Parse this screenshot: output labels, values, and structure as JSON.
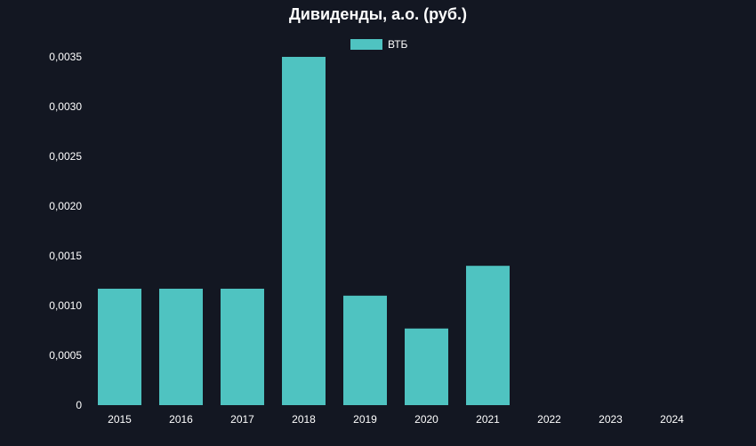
{
  "chart_data": {
    "type": "bar",
    "title": "Дивиденды, а.о. (руб.)",
    "categories": [
      "2015",
      "2016",
      "2017",
      "2018",
      "2019",
      "2020",
      "2021",
      "2022",
      "2023",
      "2024"
    ],
    "series": [
      {
        "name": "ВТБ",
        "color": "#4fc3c1",
        "values": [
          0.00117,
          0.00117,
          0.00117,
          0.0035,
          0.0011,
          0.00077,
          0.0014,
          null,
          null,
          null
        ]
      }
    ],
    "ylim": [
      0,
      0.0035
    ],
    "yticks": [
      "0",
      "0,0005",
      "0,0010",
      "0,0015",
      "0,0020",
      "0,0025",
      "0,0030",
      "0,0035"
    ],
    "ytick_values": [
      0,
      0.0005,
      0.001,
      0.0015,
      0.002,
      0.0025,
      0.003,
      0.0035
    ],
    "grid": false,
    "legend": "top-center",
    "background": "#131722"
  }
}
